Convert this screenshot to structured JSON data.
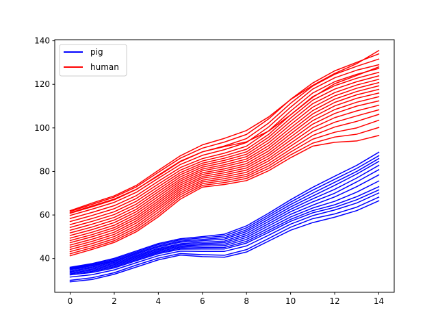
{
  "chart_data": {
    "type": "line",
    "title": "",
    "xlabel": "",
    "ylabel": "",
    "xlim": [
      -0.7,
      14.7
    ],
    "ylim": [
      24.5,
      140.5
    ],
    "x_ticks": [
      0,
      2,
      4,
      6,
      8,
      10,
      12,
      14
    ],
    "y_ticks": [
      40,
      60,
      80,
      100,
      120,
      140
    ],
    "grid": false,
    "legend_placement": "upper-left",
    "x": [
      0,
      1,
      2,
      3,
      4,
      5,
      6,
      7,
      8,
      9,
      10,
      11,
      12,
      13,
      14
    ],
    "groups": [
      {
        "name": "pig",
        "color": "#0000ff",
        "lines": [
          [
            29.3,
            30.4,
            32.8,
            36.1,
            39.4,
            41.6,
            40.9,
            40.6,
            43.0,
            48.0,
            53.0,
            56.5,
            59.0,
            62.0,
            66.5
          ],
          [
            30.0,
            31.2,
            33.5,
            37.0,
            40.2,
            42.3,
            41.8,
            41.5,
            44.1,
            49.2,
            54.4,
            58.3,
            60.5,
            63.6,
            68.2
          ],
          [
            31.5,
            32.6,
            34.8,
            38.1,
            41.3,
            43.4,
            43.3,
            43.3,
            45.8,
            50.7,
            55.8,
            59.7,
            62.3,
            65.5,
            70.1
          ],
          [
            32.5,
            33.6,
            35.7,
            39.0,
            42.2,
            44.3,
            44.4,
            44.4,
            47.1,
            52.0,
            57.1,
            61.0,
            63.5,
            67.0,
            71.5
          ],
          [
            33.0,
            34.1,
            36.2,
            39.5,
            42.7,
            44.8,
            45.0,
            45.1,
            47.9,
            52.9,
            58.0,
            62.0,
            64.7,
            68.4,
            73.0
          ],
          [
            33.5,
            34.6,
            36.7,
            40.0,
            43.2,
            45.3,
            45.7,
            45.9,
            48.8,
            53.9,
            59.1,
            63.2,
            66.3,
            70.5,
            75.6
          ],
          [
            34.0,
            35.1,
            37.2,
            40.5,
            43.7,
            45.8,
            46.3,
            46.6,
            49.7,
            55.0,
            60.3,
            64.5,
            68.3,
            73.0,
            78.4
          ],
          [
            34.5,
            35.6,
            37.7,
            41.0,
            44.2,
            46.3,
            46.9,
            47.3,
            50.6,
            56.0,
            61.5,
            66.0,
            70.0,
            75.2,
            80.8
          ],
          [
            35.0,
            36.1,
            38.2,
            41.5,
            44.7,
            46.8,
            47.5,
            48.0,
            51.5,
            57.0,
            62.6,
            67.4,
            71.8,
            77.0,
            82.8
          ],
          [
            35.3,
            36.6,
            38.7,
            42.0,
            45.3,
            47.5,
            48.2,
            48.9,
            52.4,
            58.0,
            63.7,
            68.7,
            73.6,
            78.8,
            84.6
          ],
          [
            35.5,
            36.9,
            39.1,
            42.5,
            45.8,
            48.0,
            48.8,
            49.6,
            53.2,
            59.0,
            64.8,
            70.0,
            75.0,
            80.0,
            85.9
          ],
          [
            35.7,
            37.3,
            39.6,
            43.0,
            46.4,
            48.6,
            49.5,
            50.4,
            54.1,
            59.9,
            65.9,
            71.4,
            76.4,
            81.4,
            87.2
          ],
          [
            36.0,
            37.7,
            40.1,
            43.5,
            46.9,
            49.1,
            50.1,
            51.2,
            55.0,
            60.8,
            67.0,
            72.7,
            77.8,
            82.8,
            88.8
          ]
        ]
      },
      {
        "name": "human",
        "color": "#ff0000",
        "lines": [
          [
            41.3,
            44.2,
            47.4,
            52.3,
            59.2,
            67.3,
            72.8,
            74.0,
            75.8,
            80.3,
            86.3,
            91.6,
            93.4,
            94.0,
            96.5
          ],
          [
            42.2,
            45.0,
            48.2,
            53.2,
            60.2,
            68.3,
            73.6,
            74.9,
            76.8,
            81.4,
            87.6,
            93.0,
            95.8,
            97.1,
            100.2
          ],
          [
            43.2,
            45.9,
            49.1,
            54.2,
            61.3,
            69.3,
            74.4,
            75.8,
            77.7,
            82.5,
            88.9,
            94.8,
            98.0,
            100.0,
            103.5
          ],
          [
            44.2,
            46.9,
            50.1,
            55.2,
            62.4,
            70.2,
            75.2,
            76.7,
            78.6,
            83.6,
            90.2,
            96.5,
            100.4,
            103.0,
            106.2
          ],
          [
            45.2,
            47.9,
            51.1,
            56.3,
            63.4,
            71.1,
            76.0,
            77.6,
            79.6,
            84.8,
            91.6,
            98.3,
            102.6,
            105.5,
            108.3
          ],
          [
            46.2,
            48.9,
            52.1,
            57.3,
            64.4,
            72.0,
            76.9,
            78.5,
            80.6,
            85.9,
            93.0,
            100.0,
            104.7,
            107.8,
            110.4
          ],
          [
            47.3,
            50.0,
            53.2,
            58.3,
            65.4,
            72.9,
            77.7,
            79.4,
            81.6,
            87.1,
            94.4,
            101.7,
            106.6,
            110.0,
            112.4
          ],
          [
            48.3,
            51.0,
            54.2,
            59.3,
            66.4,
            73.8,
            78.6,
            80.3,
            82.6,
            88.2,
            95.8,
            103.3,
            108.4,
            111.8,
            114.3
          ],
          [
            49.4,
            52.1,
            55.3,
            60.4,
            67.4,
            74.7,
            79.4,
            81.2,
            83.6,
            89.4,
            97.2,
            104.9,
            110.1,
            113.6,
            116.0
          ],
          [
            50.6,
            53.3,
            56.5,
            61.5,
            68.5,
            75.6,
            80.3,
            82.2,
            84.7,
            90.6,
            98.6,
            106.4,
            111.7,
            115.2,
            117.7
          ],
          [
            51.8,
            54.5,
            57.7,
            62.6,
            69.6,
            76.5,
            81.1,
            83.1,
            85.7,
            91.8,
            100.0,
            107.9,
            113.2,
            116.7,
            119.3
          ],
          [
            53.0,
            55.8,
            58.9,
            63.8,
            70.7,
            77.5,
            82.0,
            84.1,
            86.8,
            93.1,
            101.5,
            109.5,
            114.7,
            118.2,
            120.8
          ],
          [
            54.3,
            57.1,
            60.2,
            65.0,
            71.8,
            78.5,
            82.9,
            85.1,
            87.9,
            94.4,
            103.0,
            111.1,
            116.2,
            119.7,
            122.3
          ],
          [
            55.6,
            58.4,
            61.5,
            66.3,
            73.0,
            79.5,
            83.8,
            86.1,
            89.0,
            95.7,
            104.5,
            112.7,
            117.8,
            121.2,
            123.9
          ],
          [
            57.0,
            59.8,
            62.9,
            67.6,
            74.2,
            80.6,
            84.8,
            87.2,
            90.2,
            97.0,
            106.0,
            114.3,
            119.4,
            122.8,
            125.5
          ],
          [
            58.4,
            61.2,
            64.3,
            68.9,
            75.5,
            81.8,
            85.9,
            88.4,
            91.6,
            98.6,
            107.7,
            116.0,
            121.2,
            124.6,
            127.3
          ],
          [
            59.8,
            62.7,
            65.8,
            70.4,
            76.9,
            83.2,
            87.4,
            90.0,
            93.3,
            100.4,
            109.5,
            117.8,
            123.0,
            126.5,
            129.0
          ],
          [
            60.8,
            63.8,
            67.0,
            71.7,
            78.3,
            84.7,
            89.0,
            91.7,
            95.1,
            102.2,
            111.3,
            119.2,
            124.6,
            128.3,
            131.6
          ],
          [
            61.6,
            64.9,
            68.2,
            72.9,
            79.6,
            86.1,
            90.7,
            93.5,
            97.0,
            104.1,
            113.1,
            120.6,
            126.2,
            130.1,
            134.0
          ],
          [
            62.0,
            65.5,
            68.8,
            73.6,
            80.5,
            87.2,
            92.2,
            95.2,
            98.8,
            105.0,
            113.0,
            119.5,
            125.0,
            129.5,
            135.5
          ],
          [
            61.0,
            64.2,
            67.3,
            71.8,
            78.0,
            84.5,
            89.0,
            91.4,
            93.6,
            98.5,
            106.0,
            114.0,
            120.3,
            124.1,
            128.0
          ]
        ]
      }
    ]
  }
}
